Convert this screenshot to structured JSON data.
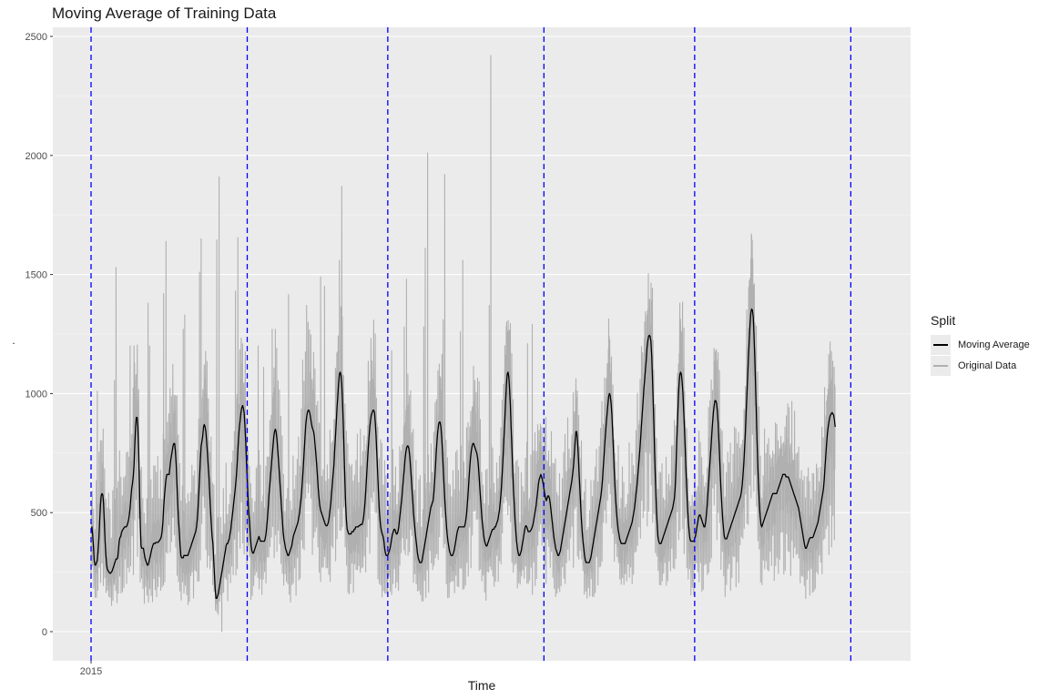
{
  "chart_data": {
    "type": "line",
    "title": "Moving Average of Training Data",
    "xlabel": "Time",
    "ylabel": ".",
    "x_ticks": [
      "2015"
    ],
    "ylim": [
      -120,
      2520
    ],
    "y_ticks": [
      0,
      500,
      1000,
      1500,
      2000,
      2500
    ],
    "grid": true,
    "legend": {
      "title": "Split",
      "placement": "right",
      "entries": [
        {
          "label": "Moving Average",
          "color": "#000000"
        },
        {
          "label": "Original Data",
          "color": "#b0b0b0"
        }
      ]
    },
    "split_markers": {
      "color": "#0000ff",
      "style": "dashed",
      "period_index": [
        0,
        20,
        38,
        58,
        77.3,
        97.3
      ]
    },
    "series": [
      {
        "name": "Moving Average",
        "color": "#000000",
        "period_index_start": 0,
        "period_index_step": 0.1,
        "values": [
          420,
          440,
          410,
          360,
          300,
          280,
          280,
          290,
          300,
          340,
          390,
          460,
          530,
          570,
          580,
          575,
          540,
          460,
          380,
          320,
          280,
          260,
          255,
          250,
          245,
          245,
          250,
          255,
          265,
          275,
          285,
          295,
          305,
          305,
          310,
          340,
          380,
          395,
          400,
          415,
          425,
          430,
          435,
          440,
          440,
          440,
          445,
          455,
          470,
          490,
          520,
          560,
          600,
          620,
          650,
          700,
          780,
          860,
          900,
          900,
          860,
          760,
          600,
          450,
          360,
          350,
          350,
          350,
          330,
          310,
          300,
          290,
          280,
          280,
          290,
          305,
          320,
          335,
          350,
          360,
          370,
          370,
          370,
          375,
          375,
          375,
          375,
          380,
          385,
          390,
          400,
          420,
          460,
          520,
          570,
          610,
          640,
          660,
          660,
          660,
          660,
          690,
          720,
          740,
          760,
          780,
          790,
          790,
          760,
          700,
          620,
          540,
          470,
          420,
          360,
          320,
          310,
          310,
          310,
          320,
          320,
          320,
          320,
          320,
          320,
          330,
          340,
          350,
          360,
          370,
          380,
          390,
          400,
          410,
          420,
          440,
          470,
          520,
          580,
          650,
          720,
          780,
          800,
          820,
          860,
          870,
          860,
          840,
          800,
          750,
          700,
          650,
          580,
          510,
          450,
          400,
          370,
          310,
          240,
          180,
          140,
          140,
          150,
          160,
          180,
          200,
          220,
          240,
          260,
          280,
          300,
          320,
          340,
          360,
          370,
          370,
          380,
          390,
          410,
          430,
          460,
          490,
          520,
          550,
          580,
          610,
          650,
          700,
          760,
          820,
          860,
          890,
          920,
          940,
          950,
          940,
          920,
          870,
          800,
          720,
          640,
          560,
          500,
          460,
          400,
          360,
          340,
          330,
          330,
          340,
          350,
          360,
          370,
          380,
          390,
          400,
          390,
          380,
          380,
          380,
          380,
          380,
          380,
          390,
          410,
          440,
          480,
          530,
          580,
          620,
          660,
          700,
          740,
          780,
          820,
          840,
          850,
          840,
          810,
          770,
          720,
          670,
          620,
          570,
          520,
          470,
          420,
          390,
          370,
          350,
          340,
          330,
          320,
          320,
          330,
          340,
          350,
          360,
          380,
          400,
          410,
          420,
          430,
          440,
          450,
          460,
          480,
          500,
          530,
          560,
          600,
          650,
          700,
          760,
          820,
          870,
          900,
          920,
          930,
          930,
          920,
          900,
          880,
          860,
          850,
          840,
          820,
          780,
          740,
          700,
          650,
          600,
          560,
          530,
          510,
          500,
          490,
          480,
          470,
          460,
          450,
          445,
          445,
          450,
          460,
          480,
          510,
          540,
          580,
          620,
          660,
          700,
          760,
          820,
          880,
          940,
          990,
          1040,
          1080,
          1090,
          1080,
          1040,
          970,
          870,
          760,
          640,
          540,
          470,
          430,
          420,
          410,
          410,
          410,
          410,
          420,
          420,
          420,
          430,
          430,
          440,
          440,
          440,
          440,
          445,
          445,
          450,
          450,
          450,
          460,
          480,
          510,
          550,
          600,
          660,
          720,
          770,
          820,
          860,
          890,
          910,
          920,
          930,
          930,
          920,
          880,
          820,
          750,
          670,
          590,
          520,
          470,
          440,
          420,
          410,
          400,
          380,
          350,
          330,
          320,
          320,
          320,
          330,
          340,
          350,
          370,
          390,
          410,
          420,
          430,
          430,
          420,
          410,
          410,
          420,
          440,
          470,
          500,
          530,
          560,
          600,
          640,
          680,
          720,
          750,
          770,
          780,
          780,
          770,
          740,
          700,
          650,
          600,
          550,
          500,
          460,
          420,
          390,
          360,
          330,
          310,
          300,
          290,
          290,
          290,
          300,
          320,
          340,
          360,
          380,
          400,
          420,
          440,
          460,
          480,
          500,
          520,
          530,
          540,
          550,
          580,
          630,
          690,
          750,
          800,
          840,
          870,
          880,
          880,
          860,
          820,
          760,
          690,
          620,
          560,
          500,
          450,
          410,
          380,
          360,
          340,
          330,
          320,
          320,
          320,
          330,
          340,
          360,
          380,
          400,
          420,
          430,
          440,
          440,
          440,
          440,
          440,
          440,
          440,
          440,
          450,
          470,
          500,
          540,
          590,
          640,
          690,
          730,
          760,
          780,
          790,
          790,
          780,
          770,
          760,
          750,
          730,
          700,
          650,
          600,
          550,
          500,
          460,
          430,
          400,
          380,
          370,
          360,
          360,
          370,
          380,
          390,
          400,
          410,
          420,
          430,
          430,
          430,
          440,
          440,
          450,
          460,
          470,
          490,
          510,
          540,
          580,
          630,
          690,
          760,
          830,
          900,
          970,
          1040,
          1080,
          1090,
          1070,
          1020,
          950,
          860,
          770,
          680,
          600,
          530,
          470,
          420,
          380,
          350,
          330,
          320,
          320,
          330,
          340,
          360,
          380,
          400,
          420,
          440,
          445,
          440,
          430,
          420,
          420,
          420,
          425,
          430,
          440,
          450,
          470,
          490,
          510,
          530,
          560,
          590,
          620,
          640,
          650,
          660,
          650,
          640,
          620,
          600,
          580,
          560,
          550,
          560,
          570,
          570,
          560,
          540,
          510,
          480,
          450,
          420,
          390,
          370,
          350,
          340,
          330,
          320,
          320,
          330,
          340,
          360,
          380,
          400,
          420,
          440,
          460,
          480,
          500,
          520,
          540,
          560,
          580,
          600,
          620,
          640,
          670,
          700,
          750,
          800,
          840,
          840,
          800,
          740,
          670,
          600,
          530,
          470,
          420,
          380,
          350,
          320,
          300,
          290,
          290,
          290,
          290,
          290,
          300,
          310,
          330,
          350,
          370,
          390,
          410,
          430,
          450,
          470,
          490,
          510,
          530,
          550,
          570,
          600,
          640,
          690,
          740,
          790,
          840,
          880,
          920,
          960,
          990,
          1000,
          990,
          960,
          910,
          840,
          760,
          680,
          610,
          550,
          500,
          460,
          430,
          410,
          390,
          380,
          370,
          370,
          370,
          370,
          370,
          370,
          380,
          390,
          400,
          410,
          420,
          430,
          440,
          450,
          460,
          480,
          500,
          520,
          550,
          580,
          610,
          650,
          690,
          730,
          770,
          820,
          870,
          920,
          970,
          1020,
          1060,
          1100,
          1140,
          1190,
          1220,
          1240,
          1245,
          1240,
          1220,
          1160,
          1070,
          960,
          840,
          720,
          610,
          520,
          450,
          400,
          380,
          370,
          370,
          370,
          380,
          390,
          400,
          410,
          420,
          430,
          440,
          450,
          460,
          470,
          480,
          490,
          500,
          510,
          520,
          540,
          560,
          600,
          680,
          780,
          880,
          960,
          1040,
          1080,
          1090,
          1080,
          1050,
          1000,
          930,
          850,
          760,
          670,
          590,
          520,
          460,
          420,
          390,
          380,
          380,
          380,
          380,
          380,
          390,
          400,
          420,
          440,
          460,
          480,
          490,
          490,
          480,
          470,
          460,
          450,
          440,
          440,
          460,
          490,
          530,
          580,
          630,
          680,
          730,
          780,
          830,
          880,
          920,
          950,
          970,
          970,
          960,
          930,
          880,
          810,
          730,
          650,
          580,
          520,
          470,
          430,
          400,
          390,
          390,
          390,
          400,
          410,
          420,
          430,
          440,
          450,
          460,
          470,
          480,
          490,
          500,
          510,
          520,
          530,
          540,
          550,
          560,
          570,
          590,
          620,
          660,
          710,
          770,
          840,
          920,
          1000,
          1080,
          1160,
          1230,
          1290,
          1340,
          1355,
          1350,
          1320,
          1250,
          1150,
          1040,
          920,
          800,
          690,
          600,
          530,
          480,
          450,
          440,
          450,
          460,
          470,
          480,
          490,
          500,
          510,
          520,
          530,
          540,
          550,
          560,
          570,
          580,
          580,
          580,
          580,
          580,
          580,
          590,
          600,
          610,
          620,
          630,
          640,
          650,
          660,
          660,
          660,
          660,
          650,
          650,
          650,
          650,
          640,
          630,
          620,
          610,
          600,
          590,
          580,
          570,
          560,
          550,
          540,
          530,
          520,
          500,
          480,
          460,
          440,
          420,
          400,
          380,
          360,
          350,
          350,
          360,
          370,
          380,
          390,
          395,
          395,
          395,
          395,
          400,
          410,
          420,
          430,
          440,
          450,
          460,
          480,
          500,
          520,
          540,
          560,
          580,
          600,
          640,
          690,
          740,
          790,
          830,
          860,
          880,
          900,
          910,
          915,
          920,
          915,
          910,
          890,
          860
        ]
      },
      {
        "name": "Original Data",
        "color": "#b0b0b0",
        "period_index_start": 0,
        "period_index_step": 0.025,
        "peaks": [
          {
            "p": 0.8,
            "v": 1010
          },
          {
            "p": 3.0,
            "v": 1055
          },
          {
            "p": 3.2,
            "v": 1530
          },
          {
            "p": 5.0,
            "v": 1200
          },
          {
            "p": 5.5,
            "v": 1200
          },
          {
            "p": 7.3,
            "v": 1380
          },
          {
            "p": 7.5,
            "v": 1200
          },
          {
            "p": 9.3,
            "v": 1420
          },
          {
            "p": 9.6,
            "v": 1640
          },
          {
            "p": 11.8,
            "v": 1270
          },
          {
            "p": 12.0,
            "v": 1330
          },
          {
            "p": 13.9,
            "v": 1510
          },
          {
            "p": 14.1,
            "v": 1650
          },
          {
            "p": 16.1,
            "v": 1645
          },
          {
            "p": 16.4,
            "v": 1910
          },
          {
            "p": 18.5,
            "v": 1430
          },
          {
            "p": 18.8,
            "v": 1655
          },
          {
            "p": 21.4,
            "v": 1200
          },
          {
            "p": 22.1,
            "v": 1110
          },
          {
            "p": 23.2,
            "v": 1270
          },
          {
            "p": 23.6,
            "v": 1270
          },
          {
            "p": 25.3,
            "v": 1415
          },
          {
            "p": 27.1,
            "v": 1140
          },
          {
            "p": 27.6,
            "v": 1370
          },
          {
            "p": 29.4,
            "v": 1490
          },
          {
            "p": 29.9,
            "v": 1450
          },
          {
            "p": 31.5,
            "v": 1130
          },
          {
            "p": 31.8,
            "v": 1560
          },
          {
            "p": 32.1,
            "v": 1870
          },
          {
            "p": 34.1,
            "v": 830
          },
          {
            "p": 34.5,
            "v": 850
          },
          {
            "p": 36.4,
            "v": 1250
          },
          {
            "p": 38.5,
            "v": 1180
          },
          {
            "p": 40.1,
            "v": 1280
          },
          {
            "p": 40.4,
            "v": 1480
          },
          {
            "p": 42.6,
            "v": 1280
          },
          {
            "p": 42.8,
            "v": 1610
          },
          {
            "p": 43.1,
            "v": 2010
          },
          {
            "p": 45.1,
            "v": 1310
          },
          {
            "p": 45.3,
            "v": 1920
          },
          {
            "p": 47.3,
            "v": 1260
          },
          {
            "p": 47.6,
            "v": 1560
          },
          {
            "p": 49.5,
            "v": 990
          },
          {
            "p": 49.7,
            "v": 1050
          },
          {
            "p": 51.0,
            "v": 1370
          },
          {
            "p": 51.2,
            "v": 2420
          },
          {
            "p": 52.9,
            "v": 1040
          },
          {
            "p": 53.5,
            "v": 960
          },
          {
            "p": 55.9,
            "v": 1210
          },
          {
            "p": 56.5,
            "v": 1290
          }
        ]
      }
    ]
  }
}
